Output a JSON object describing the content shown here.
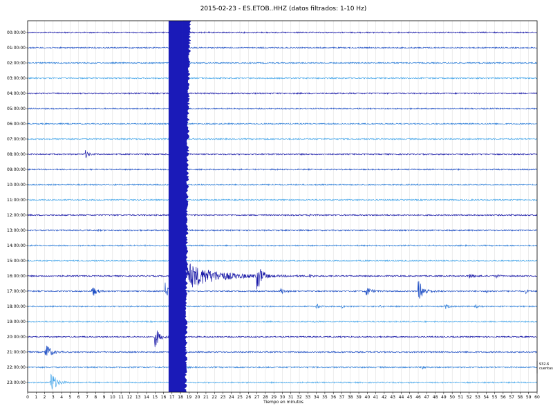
{
  "title": "2015-02-23 - ES.ETOB..HHZ (datos filtrados: 1-10 Hz)",
  "chart_data": {
    "type": "line",
    "title": "2015-02-23 - ES.ETOB..HHZ (datos filtrados: 1-10 Hz)",
    "xlabel": "Tiempo en minutos",
    "ylabel": "",
    "xlim": [
      0,
      60
    ],
    "x_ticks": [
      0,
      1,
      2,
      3,
      4,
      5,
      6,
      7,
      8,
      9,
      10,
      11,
      12,
      13,
      14,
      15,
      16,
      17,
      18,
      19,
      20,
      21,
      22,
      23,
      24,
      25,
      26,
      27,
      28,
      29,
      30,
      31,
      32,
      33,
      34,
      35,
      36,
      37,
      38,
      39,
      40,
      41,
      42,
      43,
      44,
      45,
      46,
      47,
      48,
      49,
      50,
      51,
      52,
      53,
      54,
      55,
      56,
      57,
      58,
      59,
      60
    ],
    "grid": true,
    "row_labels": [
      "00:00:00",
      "01:00:00",
      "02:00:00",
      "03:00:00",
      "04:00:00",
      "05:00:00",
      "06:00:00",
      "07:00:00",
      "08:00:00",
      "09:00:00",
      "10:00:00",
      "11:00:00",
      "12:00:00",
      "13:00:00",
      "14:00:00",
      "15:00:00",
      "16:00:00",
      "17:00:00",
      "18:00:00",
      "19:00:00",
      "20:00:00",
      "21:00:00",
      "22:00:00",
      "23:00:00"
    ],
    "row_colors": [
      "#1a1aa8",
      "#1f4fc4",
      "#2f7fd8",
      "#4aa8ea"
    ],
    "scale_label": [
      "932.6",
      "cuentas"
    ],
    "major_event": {
      "start_min": 16.6,
      "end_min": 18.3,
      "row_start": 0,
      "row_end": 23
    },
    "events": [
      {
        "row": 8,
        "minute": 6.8,
        "amp": 0.45,
        "dur": 1.0
      },
      {
        "row": 12,
        "minute": 33.2,
        "amp": 0.12,
        "dur": 0.8
      },
      {
        "row": 12,
        "minute": 57.0,
        "amp": 0.1,
        "dur": 0.6
      },
      {
        "row": 13,
        "minute": 8.2,
        "amp": 0.06,
        "dur": 0.6
      },
      {
        "row": 16,
        "minute": 27.0,
        "amp": 1.9,
        "dur": 1.6
      },
      {
        "row": 16,
        "minute": 33.2,
        "amp": 0.2,
        "dur": 0.8
      },
      {
        "row": 16,
        "minute": 52.0,
        "amp": 0.45,
        "dur": 0.9
      },
      {
        "row": 16,
        "minute": 55.2,
        "amp": 0.25,
        "dur": 0.7
      },
      {
        "row": 17,
        "minute": 7.6,
        "amp": 0.75,
        "dur": 1.2
      },
      {
        "row": 17,
        "minute": 16.2,
        "amp": 1.0,
        "dur": 1.3
      },
      {
        "row": 17,
        "minute": 29.8,
        "amp": 0.5,
        "dur": 1.0
      },
      {
        "row": 17,
        "minute": 39.8,
        "amp": 0.75,
        "dur": 1.3
      },
      {
        "row": 17,
        "minute": 46.0,
        "amp": 1.5,
        "dur": 1.6
      },
      {
        "row": 17,
        "minute": 54.0,
        "amp": 0.25,
        "dur": 0.6
      },
      {
        "row": 17,
        "minute": 58.6,
        "amp": 0.3,
        "dur": 0.7
      },
      {
        "row": 18,
        "minute": 34.0,
        "amp": 0.35,
        "dur": 0.8
      },
      {
        "row": 18,
        "minute": 37.0,
        "amp": 0.2,
        "dur": 0.7
      },
      {
        "row": 18,
        "minute": 41.5,
        "amp": 0.12,
        "dur": 0.6
      },
      {
        "row": 18,
        "minute": 49.2,
        "amp": 0.3,
        "dur": 0.9
      },
      {
        "row": 18,
        "minute": 52.8,
        "amp": 0.15,
        "dur": 0.6
      },
      {
        "row": 19,
        "minute": 33.8,
        "amp": 0.15,
        "dur": 0.5
      },
      {
        "row": 20,
        "minute": 15.0,
        "amp": 1.35,
        "dur": 1.3
      },
      {
        "row": 21,
        "minute": 2.1,
        "amp": 1.3,
        "dur": 1.4
      },
      {
        "row": 22,
        "minute": 18.2,
        "amp": 0.35,
        "dur": 0.8
      },
      {
        "row": 22,
        "minute": 46.5,
        "amp": 0.25,
        "dur": 0.7
      },
      {
        "row": 23,
        "minute": 2.7,
        "amp": 1.5,
        "dur": 1.6
      }
    ],
    "coda": {
      "row": 16,
      "start_min": 18.2,
      "end_min": 34.0,
      "amp": 1.9
    }
  }
}
